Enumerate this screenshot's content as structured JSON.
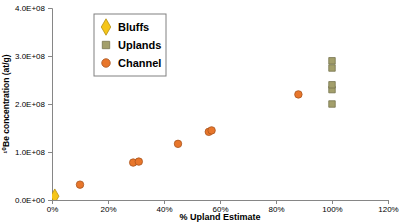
{
  "chart_data": {
    "type": "scatter",
    "x_label": "% Upland Estimate",
    "y_label": "¹⁰Be concentration (at/g)",
    "xlim": [
      0,
      120
    ],
    "xticks": [
      {
        "value": 0,
        "label": "0%"
      },
      {
        "value": 20,
        "label": "20%"
      },
      {
        "value": 40,
        "label": "40%"
      },
      {
        "value": 60,
        "label": "60%"
      },
      {
        "value": 80,
        "label": "80%"
      },
      {
        "value": 100,
        "label": "100%"
      },
      {
        "value": 120,
        "label": "120%"
      }
    ],
    "ylim": [
      0,
      400000000
    ],
    "yticks": [
      {
        "value": 0,
        "label": "0.0E+00"
      },
      {
        "value": 100000000,
        "label": "1.0E+08"
      },
      {
        "value": 200000000,
        "label": "2.0E+08"
      },
      {
        "value": 300000000,
        "label": "3.0E+08"
      },
      {
        "value": 400000000,
        "label": "4.0E+08"
      }
    ],
    "grid": false,
    "legend": "top-left",
    "series": [
      {
        "name": "Bluffs",
        "color": "#f5c518",
        "marker": "diamond",
        "x": [
          1
        ],
        "values": [
          8000000
        ]
      },
      {
        "name": "Uplands",
        "color": "#a39f6b",
        "marker": "square",
        "x": [
          100,
          100,
          100,
          100,
          100
        ],
        "values": [
          200000000,
          230000000,
          240000000,
          275000000,
          290000000
        ]
      },
      {
        "name": "Channel",
        "color": "#e8762b",
        "marker": "circle",
        "x": [
          10,
          29,
          31,
          45,
          56,
          57,
          88
        ],
        "values": [
          32000000,
          78000000,
          80000000,
          117000000,
          142000000,
          145000000,
          220000000
        ]
      }
    ]
  }
}
